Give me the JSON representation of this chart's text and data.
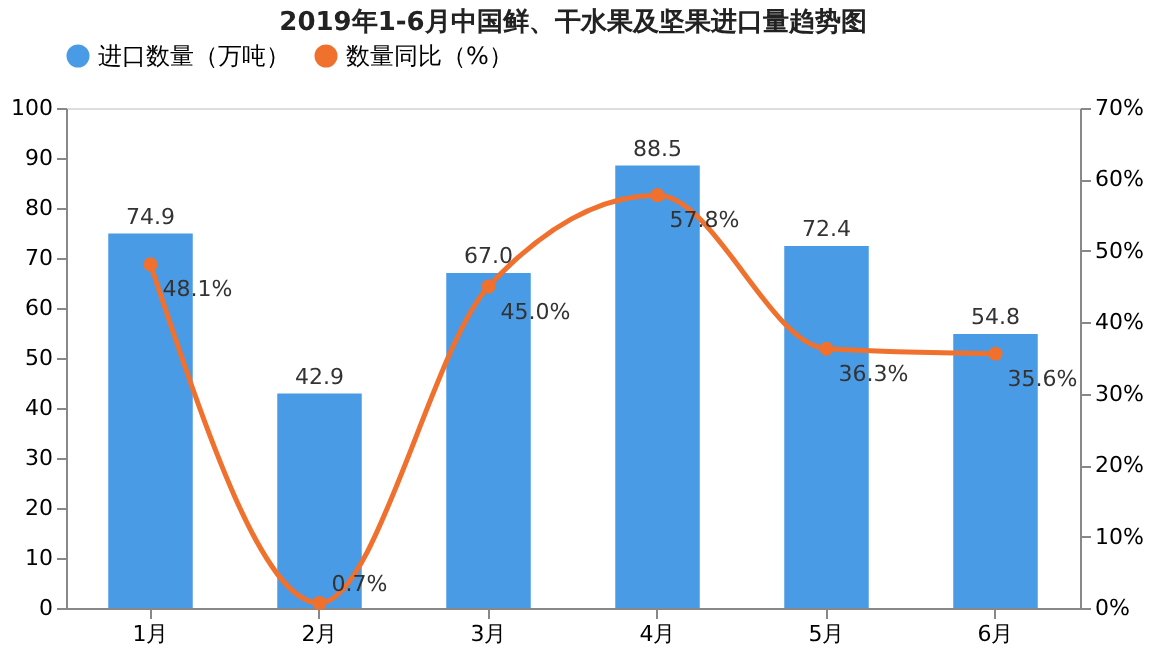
{
  "chart_data": {
    "type": "bar",
    "title": "2019年1-6月中国鲜、干水果及坚果进口量趋势图",
    "categories": [
      "1月",
      "2月",
      "3月",
      "4月",
      "5月",
      "6月"
    ],
    "series": [
      {
        "name": "进口数量（万吨）",
        "color": "#4a9be6",
        "values": [
          74.9,
          42.9,
          67.0,
          88.5,
          72.4,
          54.8
        ],
        "value_labels": [
          "74.9",
          "42.9",
          "67.0",
          "88.5",
          "72.4",
          "54.8"
        ]
      },
      {
        "name": "数量同比（%）",
        "type": "line",
        "axis": "y2",
        "color": "#f0702e",
        "values": [
          48.1,
          0.7,
          45.0,
          57.8,
          36.3,
          35.6
        ],
        "value_labels": [
          "48.1%",
          "0.7%",
          "45.0%",
          "57.8%",
          "36.3%",
          "35.6%"
        ]
      }
    ],
    "ylim": [
      0,
      100
    ],
    "yticks": [
      0,
      10,
      20,
      30,
      40,
      50,
      60,
      70,
      80,
      90,
      100
    ],
    "y2lim": [
      0,
      70
    ],
    "y2ticks": [
      {
        "value": 0,
        "label": "0%"
      },
      {
        "value": 10,
        "label": "10%"
      },
      {
        "value": 20,
        "label": "20%"
      },
      {
        "value": 30,
        "label": "30%"
      },
      {
        "value": 40,
        "label": "40%"
      },
      {
        "value": 50,
        "label": "50%"
      },
      {
        "value": 60,
        "label": "60%"
      },
      {
        "value": 70,
        "label": "70%"
      }
    ],
    "legend": "top",
    "grid": false,
    "marker": "circle",
    "line_style": "solid"
  }
}
